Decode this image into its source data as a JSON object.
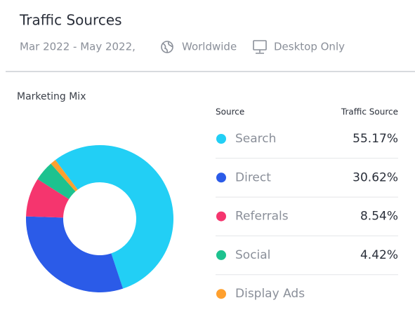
{
  "header": {
    "title": "Traffic Sources",
    "date_range": "Mar 2022 - May 2022,",
    "region": "Worldwide",
    "device": "Desktop Only"
  },
  "chart_data": {
    "type": "pie",
    "donut": true,
    "title": "Marketing Mix",
    "column_headers": [
      "Source",
      "Traffic Source"
    ],
    "categories": [
      "Search",
      "Direct",
      "Referrals",
      "Social",
      "Display Ads"
    ],
    "values": [
      55.17,
      30.62,
      8.54,
      4.42,
      1.25
    ],
    "value_labels": [
      "55.17%",
      "30.62%",
      "8.54%",
      "4.42%",
      null
    ],
    "colors": [
      "#22cff5",
      "#2b5be8",
      "#f5356e",
      "#1dc28f",
      "#ffa02e"
    ]
  }
}
